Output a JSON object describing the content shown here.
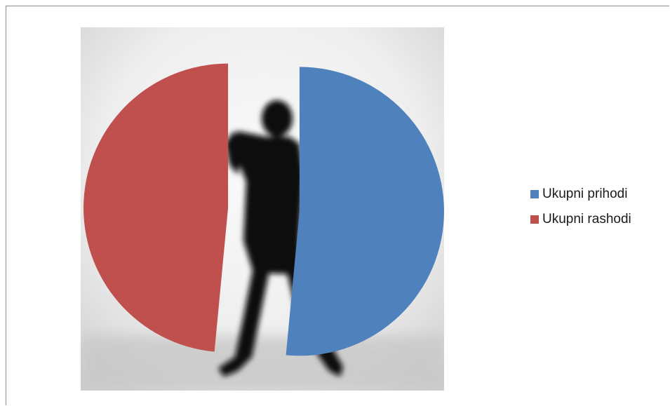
{
  "chart_data": {
    "type": "pie",
    "title": "",
    "categories": [
      "Ukupni prihodi",
      "Ukupni rashodi"
    ],
    "values": [
      51.5,
      48.5
    ],
    "colors": [
      "#4f81bd",
      "#c0504d"
    ],
    "exploded": true,
    "background_image": "silhouette-photo",
    "legend_position": "right"
  }
}
